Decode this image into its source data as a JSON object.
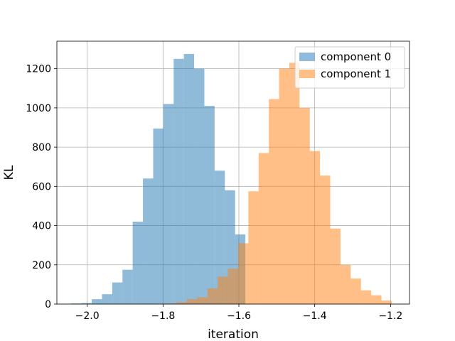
{
  "chart_data": {
    "type": "bar",
    "subtype": "histogram",
    "title": "",
    "xlabel": "iteration",
    "ylabel": "KL",
    "xlim": [
      -2.08,
      -1.15
    ],
    "ylim": [
      0,
      1340
    ],
    "xticks": [
      -2.0,
      -1.8,
      -1.6,
      -1.4,
      -1.2
    ],
    "xtick_labels": [
      "−2.0",
      "−1.8",
      "−1.6",
      "−1.4",
      "−1.2"
    ],
    "yticks": [
      0,
      200,
      400,
      600,
      800,
      1000,
      1200
    ],
    "ytick_labels": [
      "0",
      "200",
      "400",
      "600",
      "800",
      "1000",
      "1200"
    ],
    "grid": true,
    "legend_position": "top-right",
    "series": [
      {
        "name": "component 0",
        "color": "#1f77b4",
        "alpha": 0.5,
        "bin_edges": [
          -2.042,
          -2.015,
          -1.988,
          -1.961,
          -1.934,
          -1.907,
          -1.88,
          -1.853,
          -1.826,
          -1.799,
          -1.772,
          -1.745,
          -1.718,
          -1.691,
          -1.664,
          -1.637,
          -1.61,
          -1.583
        ],
        "counts": [
          3,
          5,
          25,
          50,
          110,
          175,
          420,
          640,
          895,
          1020,
          1250,
          1275,
          1200,
          1010,
          680,
          580,
          355
        ]
      },
      {
        "name": "component 1",
        "color": "#ff7f0e",
        "alpha": 0.5,
        "bin_edges": [
          -1.791,
          -1.764,
          -1.737,
          -1.71,
          -1.683,
          -1.656,
          -1.629,
          -1.602,
          -1.575,
          -1.548,
          -1.521,
          -1.494,
          -1.467,
          -1.44,
          -1.413,
          -1.386,
          -1.359,
          -1.332,
          -1.305,
          -1.278,
          -1.251,
          -1.224,
          -1.197
        ],
        "counts": [
          3,
          10,
          25,
          35,
          80,
          140,
          180,
          310,
          575,
          770,
          1045,
          1200,
          1230,
          1000,
          780,
          655,
          385,
          200,
          130,
          70,
          45,
          18,
          3
        ]
      }
    ]
  }
}
